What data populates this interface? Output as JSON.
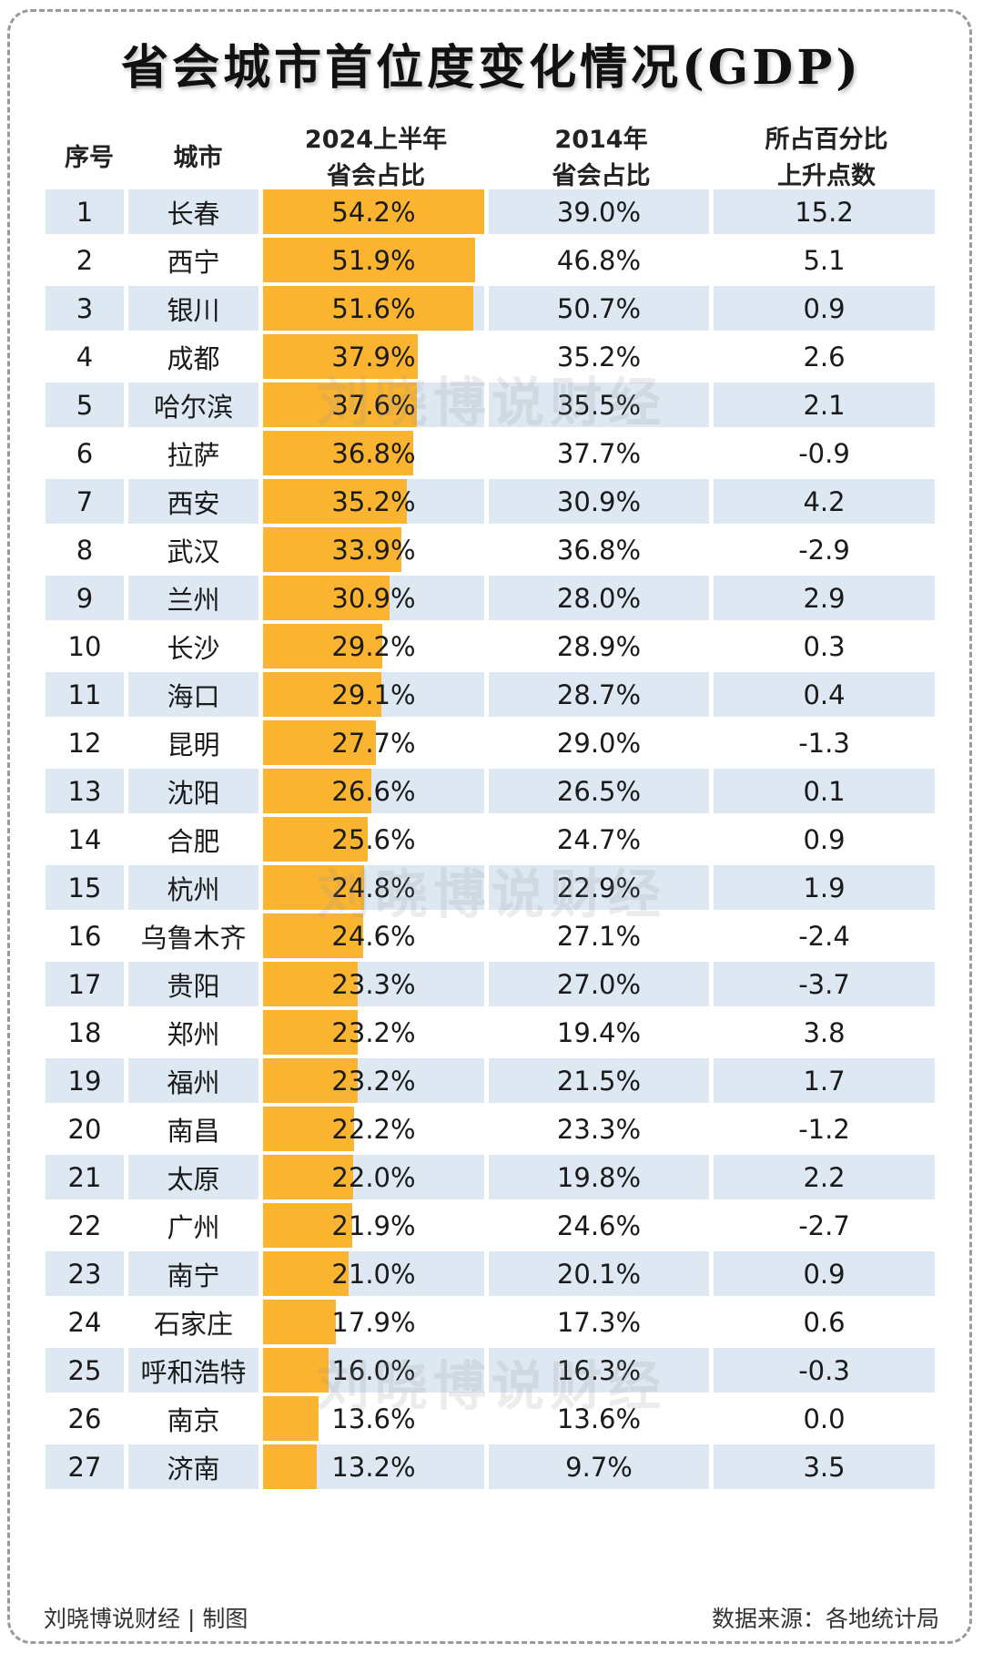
{
  "title": "省会城市首位度变化情况(GDP)",
  "headers": {
    "rank": "序号",
    "city": "城市",
    "share2024_line1": "2024上半年",
    "share2024_line2": "省会占比",
    "share2014_line1": "2014年",
    "share2014_line2": "省会占比",
    "change_line1": "所占百分比",
    "change_line2": "上升点数"
  },
  "watermark": "刘晓博说财经",
  "footer": {
    "left": "刘晓博说财经 | 制图",
    "right": "数据来源：各地统计局"
  },
  "colors": {
    "bar": "#fbb430",
    "row_stripe": "#dde8f3"
  },
  "chart_data": {
    "type": "table",
    "bar_column_max": 54.2,
    "rows": [
      {
        "rank": "1",
        "city": "长春",
        "share2024": "54.2%",
        "share2014": "39.0%",
        "change": "15.2"
      },
      {
        "rank": "2",
        "city": "西宁",
        "share2024": "51.9%",
        "share2014": "46.8%",
        "change": "5.1"
      },
      {
        "rank": "3",
        "city": "银川",
        "share2024": "51.6%",
        "share2014": "50.7%",
        "change": "0.9"
      },
      {
        "rank": "4",
        "city": "成都",
        "share2024": "37.9%",
        "share2014": "35.2%",
        "change": "2.6"
      },
      {
        "rank": "5",
        "city": "哈尔滨",
        "share2024": "37.6%",
        "share2014": "35.5%",
        "change": "2.1"
      },
      {
        "rank": "6",
        "city": "拉萨",
        "share2024": "36.8%",
        "share2014": "37.7%",
        "change": "-0.9"
      },
      {
        "rank": "7",
        "city": "西安",
        "share2024": "35.2%",
        "share2014": "30.9%",
        "change": "4.2"
      },
      {
        "rank": "8",
        "city": "武汉",
        "share2024": "33.9%",
        "share2014": "36.8%",
        "change": "-2.9"
      },
      {
        "rank": "9",
        "city": "兰州",
        "share2024": "30.9%",
        "share2014": "28.0%",
        "change": "2.9"
      },
      {
        "rank": "10",
        "city": "长沙",
        "share2024": "29.2%",
        "share2014": "28.9%",
        "change": "0.3"
      },
      {
        "rank": "11",
        "city": "海口",
        "share2024": "29.1%",
        "share2014": "28.7%",
        "change": "0.4"
      },
      {
        "rank": "12",
        "city": "昆明",
        "share2024": "27.7%",
        "share2014": "29.0%",
        "change": "-1.3"
      },
      {
        "rank": "13",
        "city": "沈阳",
        "share2024": "26.6%",
        "share2014": "26.5%",
        "change": "0.1"
      },
      {
        "rank": "14",
        "city": "合肥",
        "share2024": "25.6%",
        "share2014": "24.7%",
        "change": "0.9"
      },
      {
        "rank": "15",
        "city": "杭州",
        "share2024": "24.8%",
        "share2014": "22.9%",
        "change": "1.9"
      },
      {
        "rank": "16",
        "city": "乌鲁木齐",
        "share2024": "24.6%",
        "share2014": "27.1%",
        "change": "-2.4"
      },
      {
        "rank": "17",
        "city": "贵阳",
        "share2024": "23.3%",
        "share2014": "27.0%",
        "change": "-3.7"
      },
      {
        "rank": "18",
        "city": "郑州",
        "share2024": "23.2%",
        "share2014": "19.4%",
        "change": "3.8"
      },
      {
        "rank": "19",
        "city": "福州",
        "share2024": "23.2%",
        "share2014": "21.5%",
        "change": "1.7"
      },
      {
        "rank": "20",
        "city": "南昌",
        "share2024": "22.2%",
        "share2014": "23.3%",
        "change": "-1.2"
      },
      {
        "rank": "21",
        "city": "太原",
        "share2024": "22.0%",
        "share2014": "19.8%",
        "change": "2.2"
      },
      {
        "rank": "22",
        "city": "广州",
        "share2024": "21.9%",
        "share2014": "24.6%",
        "change": "-2.7"
      },
      {
        "rank": "23",
        "city": "南宁",
        "share2024": "21.0%",
        "share2014": "20.1%",
        "change": "0.9"
      },
      {
        "rank": "24",
        "city": "石家庄",
        "share2024": "17.9%",
        "share2014": "17.3%",
        "change": "0.6"
      },
      {
        "rank": "25",
        "city": "呼和浩特",
        "share2024": "16.0%",
        "share2014": "16.3%",
        "change": "-0.3"
      },
      {
        "rank": "26",
        "city": "南京",
        "share2024": "13.6%",
        "share2014": "13.6%",
        "change": "0.0"
      },
      {
        "rank": "27",
        "city": "济南",
        "share2024": "13.2%",
        "share2014": "9.7%",
        "change": "3.5"
      }
    ]
  }
}
